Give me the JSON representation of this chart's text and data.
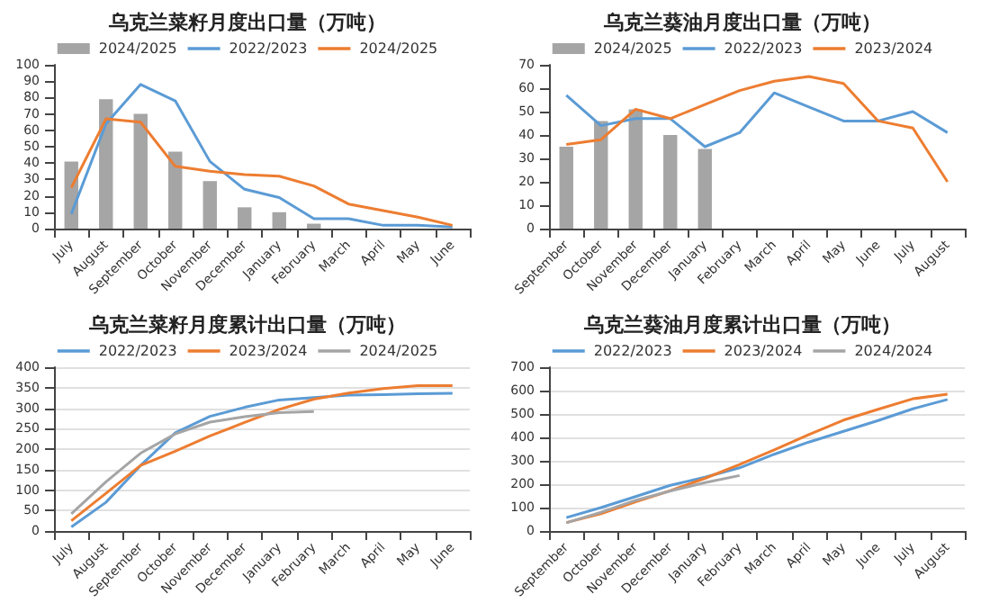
{
  "chart_data": [
    {
      "type": "bar",
      "title": "乌克兰菜籽月度出口量（万吨）",
      "categories": [
        "July",
        "August",
        "September",
        "October",
        "November",
        "December",
        "January",
        "February",
        "March",
        "April",
        "May",
        "June"
      ],
      "ylim": [
        0,
        100
      ],
      "yticks": [
        0,
        10,
        20,
        30,
        40,
        50,
        60,
        70,
        80,
        90,
        100
      ],
      "grid": false,
      "legend": "top",
      "marker": "none",
      "series": [
        {
          "name": "2024/2025",
          "color": "#a5a5a5",
          "values": [
            41,
            79,
            70,
            47,
            29,
            13,
            10,
            3,
            null,
            null,
            null,
            null
          ]
        },
        {
          "name": "2022/2023",
          "type": "line",
          "color": "#5b9bd5",
          "values": [
            9,
            64,
            88,
            78,
            41,
            24,
            19,
            6,
            6,
            2,
            2,
            1
          ]
        },
        {
          "name": "2024/2025",
          "type": "line",
          "color": "#ed7d31",
          "values": [
            25,
            67,
            65,
            38,
            35,
            33,
            32,
            26,
            15,
            11,
            7,
            2
          ]
        }
      ]
    },
    {
      "type": "bar",
      "title": "乌克兰葵油月度出口量（万吨）",
      "categories": [
        "September",
        "October",
        "November",
        "December",
        "January",
        "February",
        "March",
        "April",
        "May",
        "June",
        "July",
        "August"
      ],
      "ylim": [
        0,
        70
      ],
      "yticks": [
        0,
        10,
        20,
        30,
        40,
        50,
        60,
        70
      ],
      "grid": false,
      "legend": "top",
      "marker": "none",
      "series": [
        {
          "name": "2024/2025",
          "color": "#a5a5a5",
          "values": [
            35,
            46,
            51,
            40,
            34,
            null,
            null,
            null,
            null,
            null,
            null,
            null
          ]
        },
        {
          "name": "2022/2023",
          "type": "line",
          "color": "#5b9bd5",
          "values": [
            57,
            44,
            47,
            47,
            35,
            41,
            58,
            52,
            46,
            46,
            50,
            41
          ]
        },
        {
          "name": "2023/2024",
          "type": "line",
          "color": "#ed7d31",
          "values": [
            36,
            38,
            51,
            47,
            53,
            59,
            63,
            65,
            62,
            46,
            43,
            20
          ]
        }
      ]
    },
    {
      "type": "line",
      "title": "乌克兰菜籽月度累计出口量（万吨）",
      "categories": [
        "July",
        "August",
        "September",
        "October",
        "November",
        "December",
        "January",
        "February",
        "March",
        "April",
        "May",
        "June"
      ],
      "ylim": [
        0,
        400
      ],
      "yticks": [
        0,
        50,
        100,
        150,
        200,
        250,
        300,
        350,
        400
      ],
      "grid": "y",
      "legend": "top",
      "marker": "none",
      "series": [
        {
          "name": "2022/2023",
          "color": "#5b9bd5",
          "values": [
            10,
            70,
            160,
            240,
            280,
            302,
            320,
            326,
            332,
            333,
            335,
            336
          ]
        },
        {
          "name": "2023/2024",
          "color": "#ed7d31",
          "values": [
            25,
            92,
            160,
            195,
            232,
            265,
            297,
            322,
            337,
            348,
            355,
            355
          ]
        },
        {
          "name": "2024/2025",
          "color": "#a5a5a5",
          "values": [
            42,
            120,
            190,
            237,
            266,
            279,
            289,
            292,
            null,
            null,
            null,
            null
          ]
        }
      ]
    },
    {
      "type": "line",
      "title": "乌克兰葵油月度累计出口量（万吨）",
      "categories": [
        "September",
        "October",
        "November",
        "December",
        "January",
        "February",
        "March",
        "April",
        "May",
        "June",
        "July",
        "August"
      ],
      "ylim": [
        0,
        700
      ],
      "yticks": [
        0,
        100,
        200,
        300,
        400,
        500,
        600,
        700
      ],
      "grid": "y",
      "legend": "top",
      "marker": "none",
      "series": [
        {
          "name": "2022/2023",
          "color": "#5b9bd5",
          "values": [
            57,
            100,
            147,
            195,
            230,
            270,
            328,
            380,
            426,
            472,
            522,
            562
          ]
        },
        {
          "name": "2023/2024",
          "color": "#ed7d31",
          "values": [
            36,
            74,
            125,
            172,
            225,
            284,
            347,
            412,
            474,
            520,
            565,
            585
          ]
        },
        {
          "name": "2024/2024",
          "color": "#a5a5a5",
          "values": [
            35,
            80,
            131,
            171,
            207,
            237,
            null,
            null,
            null,
            null,
            null,
            null
          ]
        }
      ]
    }
  ]
}
